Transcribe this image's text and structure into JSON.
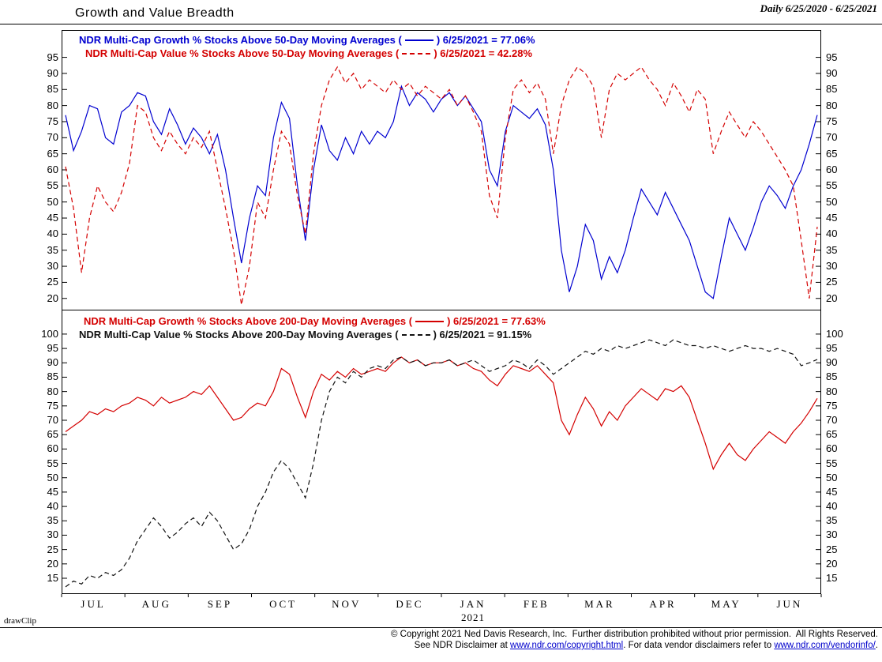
{
  "header": {
    "title": "Growth and Value Breadth",
    "period": "Daily 6/25/2020 - 6/25/2021"
  },
  "watermark": "drawClip",
  "x_axis": {
    "year": "2021"
  },
  "footer": {
    "line1": "© Copyright 2021 Ned Davis Research, Inc.  Further distribution prohibited without prior permission.  All Rights Reserved.",
    "line2": {
      "part1": "See NDR Disclaimer at ",
      "link1": "www.ndr.com/copyright.html",
      "part2": ". For data vendor disclaimers refer to ",
      "link2": "www.ndr.com/vendorinfo/",
      "part3": "."
    }
  },
  "chart_data": [
    {
      "type": "line",
      "panel": "top",
      "title": "% Stocks Above 50-Day Moving Averages",
      "ylim": [
        16.5,
        103.5
      ],
      "yticks": [
        20,
        25,
        30,
        35,
        40,
        45,
        50,
        55,
        60,
        65,
        70,
        75,
        80,
        85,
        90,
        95
      ],
      "grid": false,
      "legend_position": "top-left-inside",
      "categories": [
        "JUL",
        "AUG",
        "SEP",
        "OCT",
        "NOV",
        "DEC",
        "JAN",
        "FEB",
        "MAR",
        "APR",
        "MAY",
        "JUN"
      ],
      "series": [
        {
          "name": "NDR Multi-Cap Growth % Stocks Above 50-Day Moving Averages",
          "legend_open": "NDR Multi-Cap Growth % Stocks Above 50-Day Moving Averages (",
          "legend_close": ") 6/25/2021 = 77.06%",
          "date": "6/25/2021",
          "last_value": 77.06,
          "color": "#0000d0",
          "dash": false,
          "values": [
            77,
            66,
            72,
            80,
            79,
            70,
            68,
            78,
            80,
            84,
            83,
            75,
            71,
            79,
            74,
            68,
            73,
            70,
            65,
            71,
            60,
            45,
            31,
            45,
            55,
            52,
            70,
            81,
            76,
            55,
            38,
            60,
            74,
            66,
            63,
            70,
            65,
            72,
            68,
            72,
            70,
            75,
            86,
            80,
            84,
            82,
            78,
            82,
            84,
            80,
            83,
            79,
            75,
            60,
            55,
            72,
            80,
            78,
            76,
            79,
            74,
            60,
            35,
            22,
            30,
            43,
            38,
            26,
            33,
            28,
            35,
            45,
            54,
            50,
            46,
            53,
            48,
            43,
            38,
            30,
            22,
            20,
            33,
            45,
            40,
            35,
            42,
            50,
            55,
            52,
            48,
            55,
            60,
            68,
            77.06
          ]
        },
        {
          "name": "NDR Multi-Cap Value % Stocks Above 50-Day Moving Averages",
          "legend_open": "NDR Multi-Cap Value % Stocks Above 50-Day Moving Averages (",
          "legend_close": ") 6/25/2021 = 42.28%",
          "date": "6/25/2021",
          "last_value": 42.28,
          "color": "#d40000",
          "dash": true,
          "values": [
            61,
            48,
            28,
            45,
            55,
            50,
            47,
            53,
            62,
            80,
            78,
            70,
            66,
            72,
            68,
            65,
            70,
            67,
            72,
            60,
            48,
            35,
            18,
            30,
            50,
            45,
            60,
            72,
            68,
            52,
            40,
            65,
            80,
            88,
            92,
            87,
            90,
            85,
            88,
            86,
            84,
            88,
            85,
            87,
            83,
            86,
            84,
            82,
            85,
            80,
            83,
            78,
            72,
            52,
            45,
            70,
            85,
            88,
            84,
            87,
            82,
            65,
            80,
            88,
            92,
            90,
            86,
            70,
            85,
            90,
            88,
            90,
            92,
            88,
            85,
            80,
            87,
            83,
            78,
            85,
            82,
            65,
            72,
            78,
            74,
            70,
            75,
            72,
            68,
            64,
            60,
            55,
            38,
            20,
            42.28
          ]
        }
      ]
    },
    {
      "type": "line",
      "panel": "bottom",
      "title": "% Stocks Above 200-Day Moving Averages",
      "ylim": [
        9.5,
        108.5
      ],
      "yticks": [
        15,
        20,
        25,
        30,
        35,
        40,
        45,
        50,
        55,
        60,
        65,
        70,
        75,
        80,
        85,
        90,
        95,
        100
      ],
      "grid": false,
      "legend_position": "top-left-inside",
      "categories": [
        "JUL",
        "AUG",
        "SEP",
        "OCT",
        "NOV",
        "DEC",
        "JAN",
        "FEB",
        "MAR",
        "APR",
        "MAY",
        "JUN"
      ],
      "series": [
        {
          "name": "NDR Multi-Cap Growth % Stocks Above 200-Day Moving Averages",
          "legend_open": "NDR Multi-Cap Growth % Stocks Above 200-Day Moving Averages (",
          "legend_close": ") 6/25/2021 = 77.63%",
          "date": "6/25/2021",
          "last_value": 77.63,
          "color": "#d40000",
          "dash": false,
          "values": [
            66,
            68,
            70,
            73,
            72,
            74,
            73,
            75,
            76,
            78,
            77,
            75,
            78,
            76,
            77,
            78,
            80,
            79,
            82,
            78,
            74,
            70,
            71,
            74,
            76,
            75,
            80,
            88,
            86,
            78,
            71,
            80,
            86,
            84,
            87,
            85,
            88,
            86,
            87,
            88,
            87,
            90,
            92,
            90,
            91,
            89,
            90,
            90,
            91,
            89,
            90,
            88,
            87,
            84,
            82,
            86,
            89,
            88,
            87,
            89,
            86,
            83,
            70,
            65,
            72,
            78,
            74,
            68,
            73,
            70,
            75,
            78,
            81,
            79,
            77,
            81,
            80,
            82,
            78,
            70,
            62,
            53,
            58,
            62,
            58,
            56,
            60,
            63,
            66,
            64,
            62,
            66,
            69,
            73,
            77.63
          ]
        },
        {
          "name": "NDR Multi-Cap Value % Stocks Above 200-Day Moving Averages",
          "legend_open": "NDR Multi-Cap Value % Stocks Above 200-Day Moving Averages (",
          "legend_close": ") 6/25/2021 = 91.15%",
          "date": "6/25/2021",
          "last_value": 91.15,
          "color": "#111111",
          "dash": true,
          "values": [
            12,
            14,
            13,
            16,
            15,
            17,
            16,
            18,
            22,
            28,
            32,
            36,
            33,
            29,
            31,
            34,
            36,
            33,
            38,
            35,
            30,
            25,
            27,
            32,
            40,
            45,
            52,
            56,
            53,
            48,
            43,
            55,
            70,
            80,
            85,
            83,
            87,
            85,
            88,
            89,
            88,
            91,
            92,
            90,
            91,
            89,
            90,
            90,
            91,
            89,
            90,
            91,
            89,
            87,
            88,
            89,
            91,
            90,
            88,
            91,
            89,
            86,
            88,
            90,
            92,
            94,
            93,
            95,
            94,
            96,
            95,
            96,
            97,
            98,
            97,
            96,
            98,
            97,
            96,
            96,
            95,
            96,
            95,
            94,
            95,
            96,
            95,
            95,
            94,
            95,
            94,
            93,
            89,
            90,
            91.15
          ]
        }
      ]
    }
  ]
}
